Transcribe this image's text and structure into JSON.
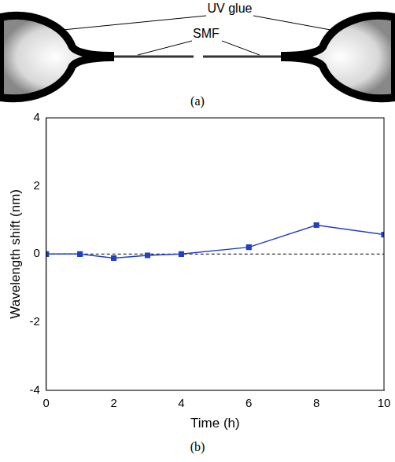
{
  "figure_a": {
    "labels": [
      "UV glue",
      "SMF"
    ],
    "caption": "(a)"
  },
  "chart_data": {
    "type": "line",
    "caption": "(b)",
    "x_label": "Time (h)",
    "y_label": "Wavelength shift (nm)",
    "x": [
      0,
      1,
      2,
      3,
      4,
      6,
      8,
      10
    ],
    "series": [
      {
        "name": "Wavelength shift",
        "color": "#1f3fc8",
        "marker": "square",
        "line_style": "solid",
        "values": [
          0,
          0,
          -0.12,
          -0.04,
          0,
          0.2,
          0.85,
          0.57
        ]
      }
    ],
    "reference_line": {
      "y": 0,
      "line_style": "dashed"
    },
    "xlim": [
      0,
      10
    ],
    "xticks": [
      0,
      2,
      4,
      6,
      8,
      10
    ],
    "ylim": [
      -4,
      4
    ],
    "yticks": [
      -4,
      -2,
      0,
      2,
      4
    ],
    "grid": false
  }
}
